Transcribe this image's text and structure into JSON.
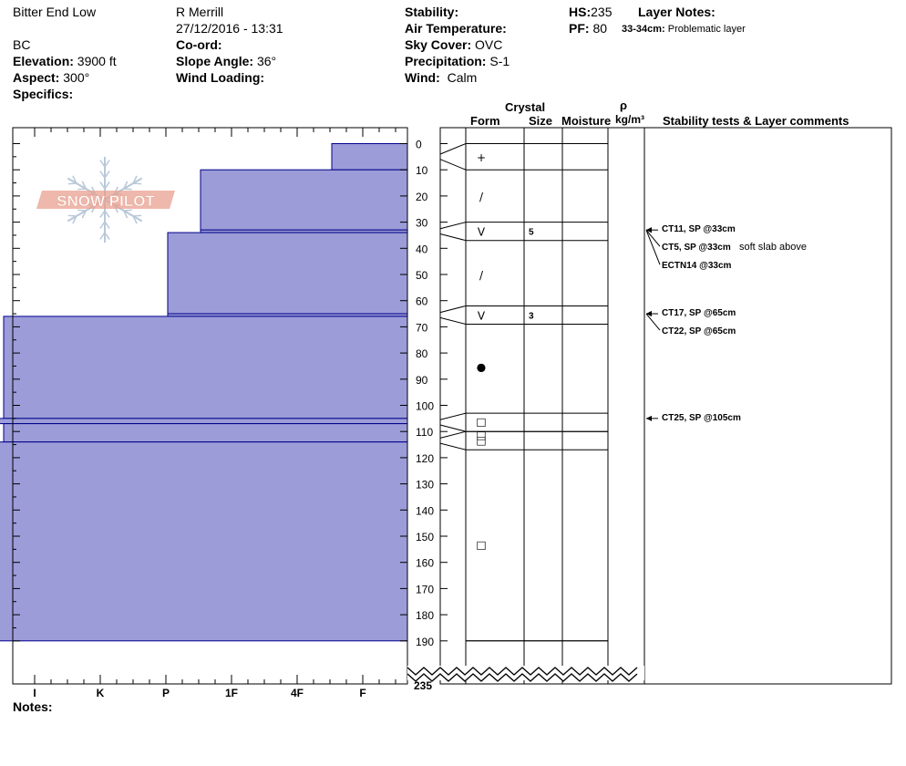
{
  "header": {
    "location": "Bitter End Low",
    "region": "BC",
    "observer": "R Merrill",
    "datetime": "27/12/2016 - 13:31",
    "elevation_label": "Elevation:",
    "elevation": "3900 ft",
    "aspect_label": "Aspect:",
    "aspect": "300°",
    "specifics_label": "Specifics:",
    "coord_label": "Co-ord:",
    "slope_label": "Slope Angle:",
    "slope": "36°",
    "wind_loading_label": "Wind Loading:",
    "stability_label": "Stability:",
    "air_temp_label": "Air Temperature:",
    "sky_label": "Sky Cover:",
    "sky": "OVC",
    "precip_label": "Precipitation:",
    "precip": "S-1",
    "wind_label": "Wind:",
    "wind": "Calm",
    "hs_label": "HS:",
    "hs": "235",
    "pf_label": "PF:",
    "pf": "80",
    "layer_notes_label": "Layer Notes:",
    "layer_note_range": "33-34cm:",
    "layer_note_text": "Problematic layer"
  },
  "columns": {
    "crystal": "Crystal",
    "form": "Form",
    "size": "Size",
    "moisture": "Moisture",
    "rho": "ρ",
    "density_unit": "kg/m³",
    "stability": "Stability tests & Layer comments"
  },
  "logo_text": "SNOW PILOT",
  "notes_label": "Notes:",
  "colors": {
    "layer_fill": "#9c9cd8",
    "layer_stroke": "#00008b",
    "logo": "#e8a090",
    "flake": "#b8c8d8"
  },
  "chart_data": {
    "type": "snow-profile",
    "depth_ticks": [
      0,
      10,
      20,
      30,
      40,
      50,
      60,
      70,
      80,
      90,
      100,
      110,
      120,
      130,
      140,
      150,
      160,
      170,
      180,
      190
    ],
    "depth_bottom_label": "235",
    "hardness_labels": [
      "I",
      "K",
      "P",
      "1F",
      "4F",
      "F"
    ],
    "layers": [
      {
        "top": 0,
        "bottom": 10,
        "hardness": 4.5,
        "form": "+",
        "size": "",
        "marker_depth": 5
      },
      {
        "top": 10,
        "bottom": 33,
        "hardness": 2.5,
        "form": "/",
        "size": "",
        "marker_depth": 20
      },
      {
        "top": 33,
        "bottom": 34,
        "hardness": 2.5,
        "form": "",
        "size": "",
        "marker_depth": null
      },
      {
        "top": 34,
        "bottom": 65,
        "hardness": 2.0,
        "form": "/",
        "size": "",
        "marker_depth": 50
      },
      {
        "top": 65,
        "bottom": 66,
        "hardness": 2.0,
        "form": "",
        "size": "",
        "marker_depth": null
      },
      {
        "top": 66,
        "bottom": 105,
        "hardness": -0.5,
        "form": "●",
        "size": "",
        "marker_depth": 85
      },
      {
        "top": 105,
        "bottom": 107,
        "hardness": -1.0,
        "form": "",
        "size": "",
        "marker_depth": null
      },
      {
        "top": 107,
        "bottom": 114,
        "hardness": -0.5,
        "form": "□",
        "size": "",
        "marker_depth": 111
      },
      {
        "top": 114,
        "bottom": 190,
        "hardness": -1.0,
        "form": "□",
        "size": "",
        "marker_depth": 153
      }
    ],
    "crystal_layers": [
      {
        "top": 0,
        "bottom": 10
      },
      {
        "top": 30,
        "bottom": 37,
        "form": "V",
        "size": "5",
        "marker_depth": 33.5
      },
      {
        "top": 62,
        "bottom": 69,
        "form": "V",
        "size": "3",
        "marker_depth": 65.5
      },
      {
        "top": 103,
        "bottom": 110,
        "form": "□",
        "size": "",
        "marker_depth": 106
      },
      {
        "top": 110,
        "bottom": 117,
        "form": "□",
        "size": "",
        "marker_depth": 113
      },
      {
        "top": 190,
        "bottom": 190
      }
    ],
    "tests": [
      {
        "label": "CT11, SP @33cm",
        "comment": "",
        "depth": 33,
        "offset": 0
      },
      {
        "label": "CT5, SP @33cm",
        "comment": "soft slab above",
        "depth": 33,
        "offset": 1
      },
      {
        "label": "ECTN14 @33cm",
        "comment": "",
        "depth": 33,
        "offset": 2
      },
      {
        "label": "CT17, SP @65cm",
        "comment": "",
        "depth": 65,
        "offset": 0
      },
      {
        "label": "CT22, SP @65cm",
        "comment": "",
        "depth": 65,
        "offset": 1
      },
      {
        "label": "CT25, SP @105cm",
        "comment": "",
        "depth": 105,
        "offset": 0
      }
    ]
  }
}
